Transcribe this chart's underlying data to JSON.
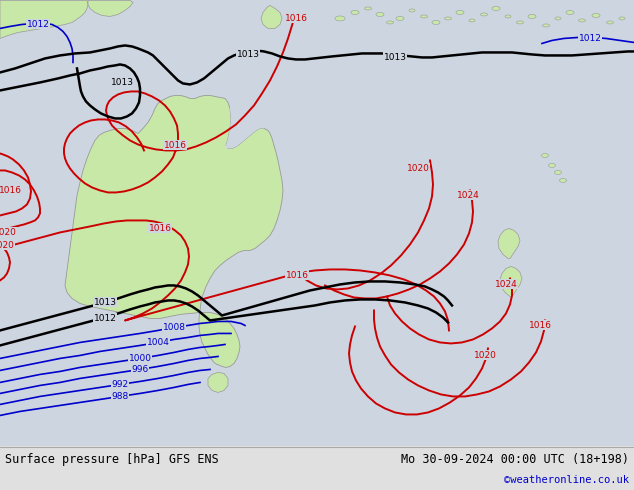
{
  "title": "Surface pressure [hPa] GFS ENS",
  "title_right": "Mo 30-09-2024 00:00 UTC (18+198)",
  "copyright": "©weatheronline.co.uk",
  "bg_color": "#cdd5e0",
  "land_color": "#c8e8a8",
  "land_border_color": "#999999",
  "figsize": [
    6.34,
    4.9
  ],
  "dpi": 100,
  "footer_bg": "#e0e0e0",
  "footer_text_color": "#000000",
  "copyright_color": "#0000cc",
  "black": "#000000",
  "red": "#cc0000",
  "blue": "#0000cc"
}
